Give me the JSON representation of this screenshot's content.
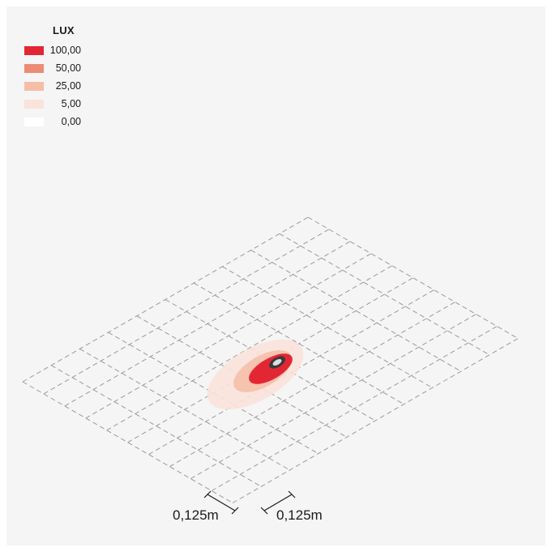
{
  "legend": {
    "title": "LUX",
    "items": [
      {
        "label": "100,00",
        "color": "#e32634"
      },
      {
        "label": "50,00",
        "color": "#ec8c75"
      },
      {
        "label": "25,00",
        "color": "#f6bda7"
      },
      {
        "label": "5,00",
        "color": "#fae3da"
      },
      {
        "label": "0,00",
        "color": "#ffffff"
      }
    ]
  },
  "dimensions": {
    "left": "0,125m",
    "right": "0,125m"
  },
  "colors": {
    "background": "#f5f5f5",
    "grid": "#9a9a9a",
    "fixture_body": "#e32634",
    "fixture_dark": "#3a3a3a"
  }
}
